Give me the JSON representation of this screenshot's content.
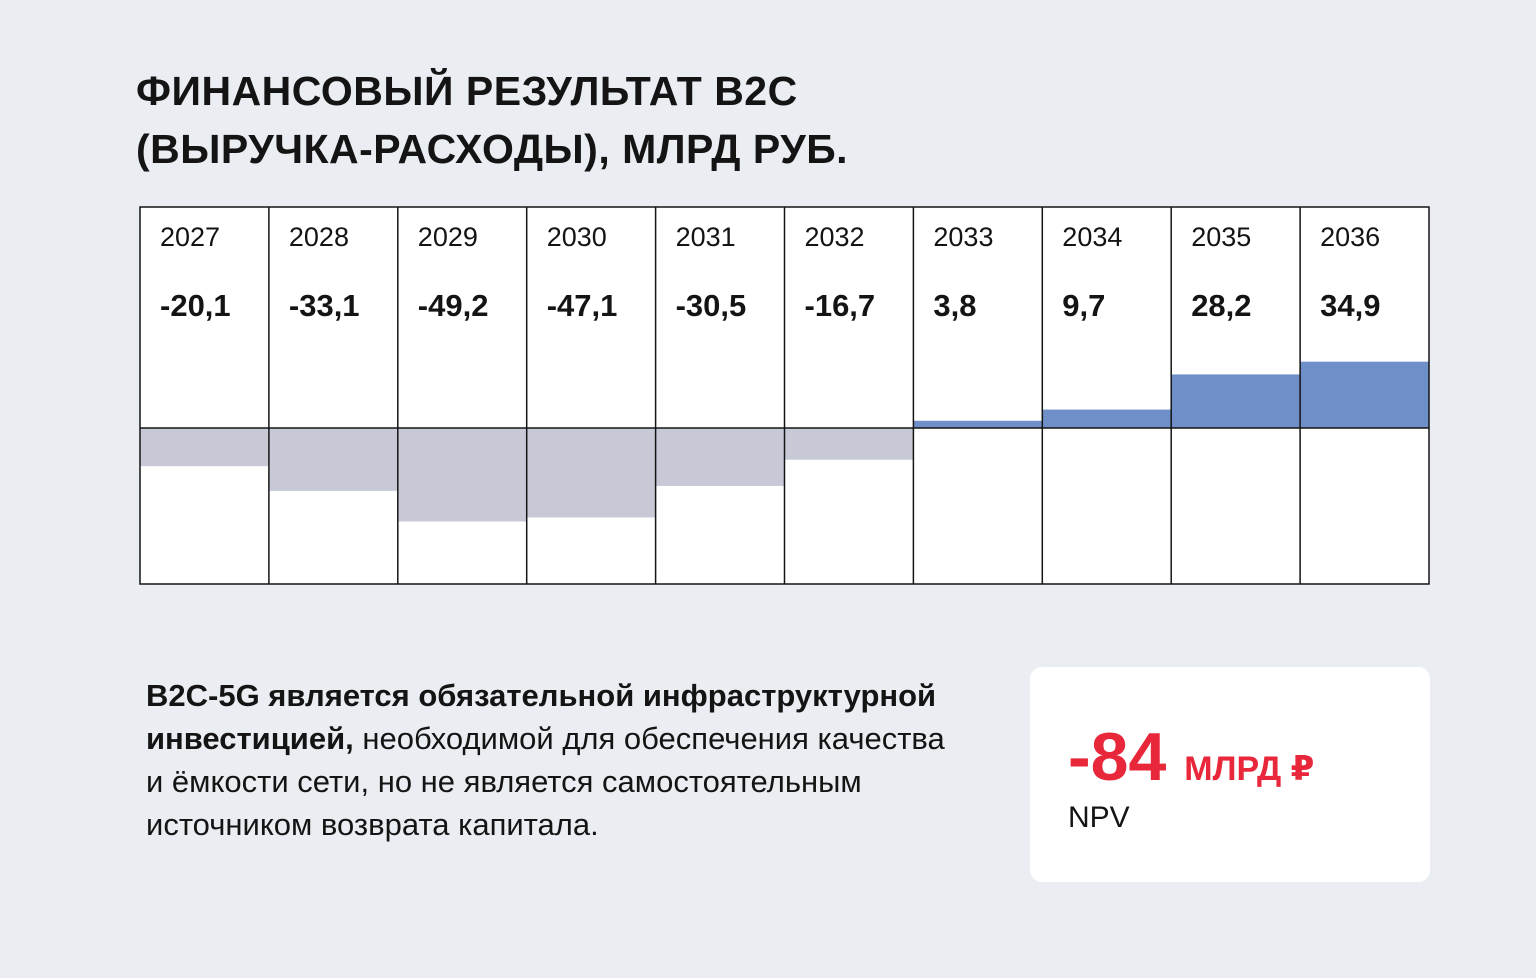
{
  "title_line1": "ФИНАНСОВЫЙ РЕЗУЛЬТАТ B2C",
  "title_line2": "(ВЫРУЧКА-РАСХОДЫ), МЛРД РУБ.",
  "chart_data": {
    "type": "bar",
    "title": "ФИНАНСОВЫЙ РЕЗУЛЬТАТ B2C (ВЫРУЧКА-РАСХОДЫ), МЛРД РУБ.",
    "categories": [
      "2027",
      "2028",
      "2029",
      "2030",
      "2031",
      "2032",
      "2033",
      "2034",
      "2035",
      "2036"
    ],
    "values": [
      -20.1,
      -33.1,
      -49.2,
      -47.1,
      -30.5,
      -16.7,
      3.8,
      9.7,
      28.2,
      34.9
    ],
    "value_labels": [
      "-20,1",
      "-33,1",
      "-49,2",
      "-47,1",
      "-30,5",
      "-16,7",
      "3,8",
      "9,7",
      "28,2",
      "34,9"
    ],
    "colors": {
      "positive": "#6f8fc8",
      "negative": "#c7cad6",
      "grid": "#141414",
      "cell_bg": "#ffffff"
    }
  },
  "description": {
    "bold": "B2C-5G является обязательной инфраструктурной инвестицией,",
    "regular": "необходимой для обеспечения качества и ёмкости сети, но не является самостоятельным источником возврата капитала."
  },
  "npv": {
    "value": "-84",
    "unit": "МЛРД ₽",
    "label": "NPV"
  },
  "colors": {
    "accent": "#e8273a",
    "background": "#eaedf2",
    "card": "#ffffff"
  }
}
